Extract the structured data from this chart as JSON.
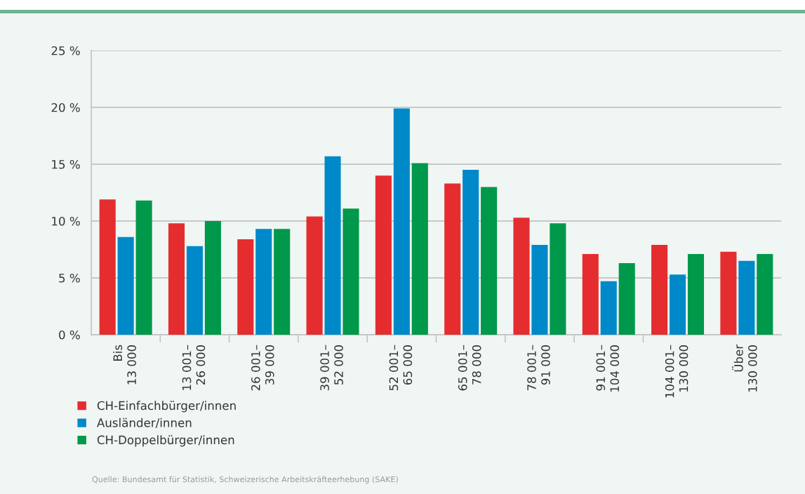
{
  "chart_data": {
    "type": "bar",
    "categories": [
      "Bis\n13 000",
      "13 001–\n26 000",
      "26 001–\n39 000",
      "39 001–\n52 000",
      "52 001–\n65 000",
      "65 001–\n78 000",
      "78 001–\n91 000",
      "91 001–\n104 000",
      "104 001–\n130 000",
      "Über\n130 000"
    ],
    "series": [
      {
        "name": "CH-Einfachbürger/innen",
        "color": "#e52d2f",
        "values": [
          11.9,
          9.8,
          8.4,
          10.4,
          14.0,
          13.3,
          10.3,
          7.1,
          7.9,
          7.3
        ]
      },
      {
        "name": "Ausländer/innen",
        "color": "#0089c9",
        "values": [
          8.6,
          7.8,
          9.3,
          15.7,
          19.9,
          14.5,
          7.9,
          4.7,
          5.3,
          6.5
        ]
      },
      {
        "name": "CH-Doppelbürger/innen",
        "color": "#00984a",
        "values": [
          11.8,
          10.0,
          9.3,
          11.1,
          15.1,
          13.0,
          9.8,
          6.3,
          7.1,
          7.1
        ]
      }
    ],
    "ylim": [
      0,
      25
    ],
    "yticks": [
      {
        "value": 0,
        "label": "0 %"
      },
      {
        "value": 5,
        "label": "5 %"
      },
      {
        "value": 10,
        "label": "10 %"
      },
      {
        "value": 15,
        "label": "15 %"
      },
      {
        "value": 20,
        "label": "20 %"
      },
      {
        "value": 25,
        "label": "25 %"
      }
    ],
    "grid": "y",
    "legend": "bottom",
    "annotations": [
      "Quelle: Bundesamt für Statistik, Schweizerische Arbeitskräfteerhebung (SAKE)"
    ]
  }
}
